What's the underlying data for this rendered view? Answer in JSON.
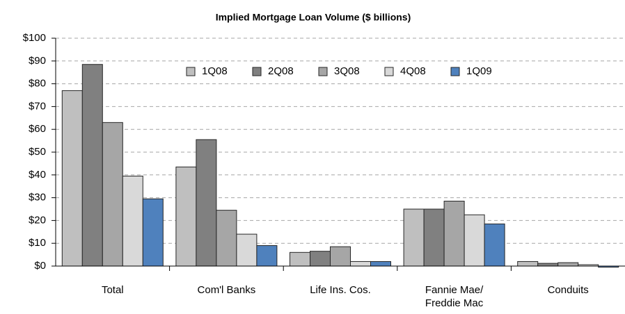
{
  "chart_data": {
    "type": "bar",
    "title": "Implied Mortgage Loan Volume ($ billions)",
    "categories": [
      "Total",
      "Com'l Banks",
      "Life Ins. Cos.",
      "Fannie Mae/ Freddie Mac",
      "Conduits"
    ],
    "series": [
      {
        "name": "1Q08",
        "color": "#bfbfbf",
        "values": [
          77,
          43.5,
          6,
          25,
          2
        ]
      },
      {
        "name": "2Q08",
        "color": "#808080",
        "values": [
          88.5,
          55.5,
          6.5,
          25,
          1.2
        ]
      },
      {
        "name": "3Q08",
        "color": "#a6a6a6",
        "values": [
          63,
          24.5,
          8.5,
          28.5,
          1.5
        ]
      },
      {
        "name": "4Q08",
        "color": "#d9d9d9",
        "values": [
          39.5,
          14,
          2,
          22.5,
          0.6
        ]
      },
      {
        "name": "1Q09",
        "color": "#4f81bd",
        "values": [
          29.5,
          9,
          2,
          18.5,
          -0.5
        ]
      }
    ],
    "ylim": [
      0,
      100
    ],
    "yticks": [
      {
        "value": 0,
        "label": "$0"
      },
      {
        "value": 10,
        "label": "$10"
      },
      {
        "value": 20,
        "label": "$20"
      },
      {
        "value": 30,
        "label": "$30"
      },
      {
        "value": 40,
        "label": "$40"
      },
      {
        "value": 50,
        "label": "$50"
      },
      {
        "value": 60,
        "label": "$60"
      },
      {
        "value": 70,
        "label": "$70"
      },
      {
        "value": 80,
        "label": "$80"
      },
      {
        "value": 90,
        "label": "$90"
      },
      {
        "value": 100,
        "label": "$100"
      }
    ],
    "grid": true,
    "legend": "top"
  }
}
